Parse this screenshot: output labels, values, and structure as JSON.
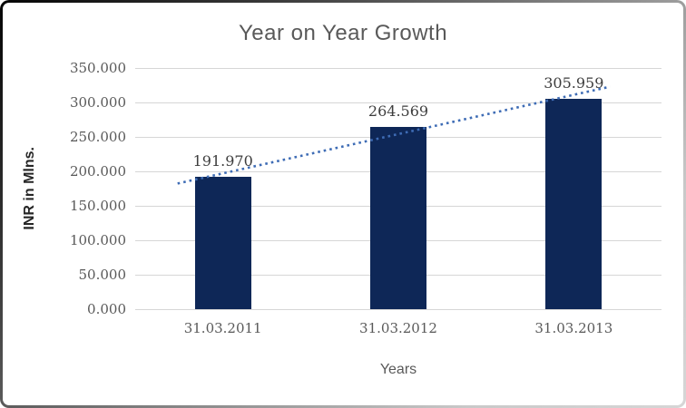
{
  "chart_data": {
    "type": "bar",
    "title": "Year on Year Growth",
    "xlabel": "Years",
    "ylabel": "INR in Mlns.",
    "categories": [
      "31.03.2011",
      "31.03.2012",
      "31.03.2013"
    ],
    "values": [
      191.97,
      264.569,
      305.959
    ],
    "value_labels": [
      "191.970",
      "264.569",
      "305.959"
    ],
    "series_unit": "INR millions",
    "y_ticks": [
      "0.000",
      "50.000",
      "100.000",
      "150.000",
      "200.000",
      "250.000",
      "300.000",
      "350.000"
    ],
    "ylim": [
      0,
      350
    ],
    "ytick_step": 50,
    "grid": "horizontal",
    "legend": "none",
    "trendline": {
      "type": "linear",
      "style": "dotted",
      "color": "#3e6cb5"
    },
    "colors": {
      "bar": "#0e2757",
      "gridline": "#d6d6d6",
      "title": "#595959",
      "tick_label": "#595959",
      "data_label": "#3d3d3d",
      "axis_title": "#262626"
    }
  }
}
